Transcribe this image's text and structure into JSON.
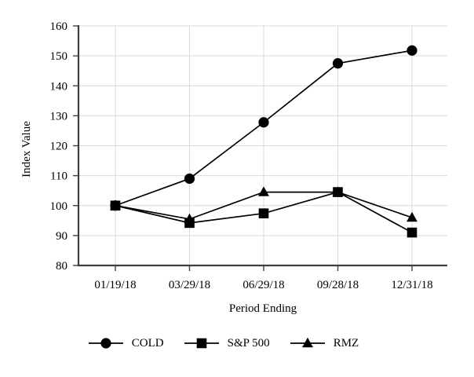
{
  "chart_data": {
    "type": "line",
    "title": "",
    "xlabel": "Period Ending",
    "ylabel": "Index Value",
    "categories": [
      "01/19/18",
      "03/29/18",
      "06/29/18",
      "09/28/18",
      "12/31/18"
    ],
    "series": [
      {
        "name": "COLD",
        "marker": "circle",
        "values": [
          100,
          109,
          127.8,
          147.5,
          151.8
        ]
      },
      {
        "name": "S&P 500",
        "marker": "square",
        "values": [
          100,
          94.2,
          97.4,
          104.5,
          91
        ]
      },
      {
        "name": "RMZ",
        "marker": "triangle",
        "values": [
          100,
          95.5,
          104.5,
          104.5,
          96
        ]
      }
    ],
    "ylim": [
      80,
      160
    ],
    "ytick_step": 10,
    "grid": true,
    "legend_position": "bottom"
  },
  "colors": {
    "series": "#000000",
    "grid": "#d9d9d9",
    "axis": "#3f3f3f",
    "text": "#000000",
    "background": "#ffffff"
  }
}
